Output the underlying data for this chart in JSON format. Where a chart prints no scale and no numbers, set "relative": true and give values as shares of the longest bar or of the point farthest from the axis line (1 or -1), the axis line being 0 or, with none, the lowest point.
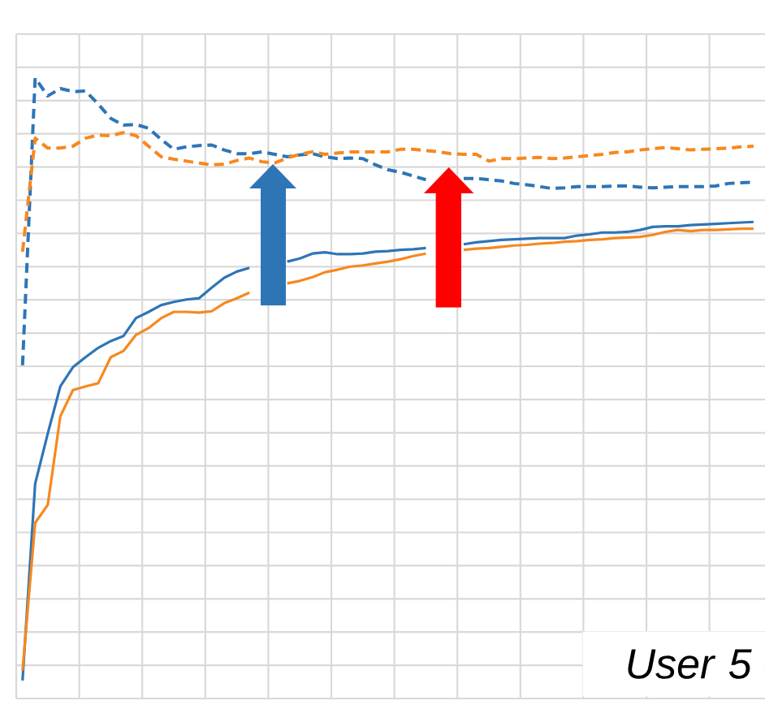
{
  "chart_data": {
    "type": "line",
    "relative": true,
    "grid": true,
    "categories": [
      null,
      null,
      null,
      null,
      null,
      null,
      null,
      null,
      null,
      null,
      null,
      null,
      null,
      null,
      null,
      null,
      null,
      null,
      null,
      null,
      null,
      null,
      null,
      null,
      null,
      null,
      null,
      null,
      null,
      null,
      null,
      null,
      null,
      null,
      null,
      null,
      null,
      null,
      null,
      null,
      null,
      null,
      null,
      null,
      null,
      null,
      null,
      null,
      null,
      null,
      null,
      null,
      null,
      null,
      null,
      null,
      null,
      null,
      null
    ],
    "series": [
      {
        "color": "#2e75b6",
        "line_style": "solid",
        "values": [
          0.029,
          0.346,
          0.427,
          0.503,
          0.534,
          0.55,
          0.565,
          0.576,
          0.584,
          0.613,
          0.623,
          0.634,
          0.639,
          0.643,
          0.645,
          0.662,
          0.678,
          0.688,
          0.694,
          null,
          null,
          0.704,
          0.709,
          0.717,
          0.719,
          0.716,
          0.716,
          0.717,
          0.72,
          0.721,
          0.723,
          0.724,
          0.726,
          null,
          null,
          0.732,
          0.735,
          0.737,
          0.739,
          0.74,
          0.741,
          0.742,
          0.742,
          0.742,
          0.746,
          0.748,
          0.751,
          0.751,
          0.752,
          0.755,
          0.76,
          0.761,
          0.761,
          0.763,
          0.764,
          0.765,
          0.766,
          0.767,
          0.768
        ]
      },
      {
        "color": "#f7881f",
        "line_style": "solid",
        "values": [
          0.045,
          0.283,
          0.312,
          0.455,
          0.497,
          0.503,
          0.508,
          0.55,
          0.56,
          0.586,
          0.597,
          0.613,
          0.623,
          0.623,
          0.622,
          0.624,
          0.637,
          0.645,
          0.654,
          null,
          null,
          0.669,
          0.673,
          0.679,
          0.687,
          0.691,
          0.696,
          0.698,
          0.701,
          0.704,
          0.708,
          0.713,
          0.717,
          null,
          null,
          0.723,
          0.725,
          0.726,
          0.728,
          0.73,
          0.731,
          0.733,
          0.734,
          0.736,
          0.737,
          0.739,
          0.74,
          0.742,
          0.743,
          0.744,
          0.747,
          0.752,
          0.755,
          0.753,
          0.755,
          0.755,
          0.756,
          0.757,
          0.757
        ]
      },
      {
        "color": "#2e75b6",
        "line_style": "dashed",
        "values": [
          0.537,
          1,
          0.971,
          0.983,
          0.978,
          0.979,
          0.958,
          0.935,
          0.924,
          0.925,
          0.919,
          0.901,
          0.885,
          0.889,
          0.891,
          0.892,
          0.884,
          0.878,
          0.878,
          0.881,
          0.877,
          0.873,
          0.876,
          0.878,
          0.873,
          0.87,
          0.871,
          0.87,
          0.86,
          0.852,
          0.848,
          0.842,
          0.836,
          null,
          null,
          0.838,
          0.838,
          0.836,
          0.834,
          0.83,
          0.828,
          0.825,
          0.822,
          0.823,
          0.825,
          0.825,
          0.825,
          0.826,
          0.826,
          0.824,
          0.823,
          0.824,
          0.825,
          0.825,
          0.825,
          0.826,
          0.83,
          0.831,
          0.832
        ]
      },
      {
        "color": "#f7881f",
        "line_style": "dashed",
        "values": [
          0.72,
          0.903,
          0.887,
          0.887,
          0.89,
          0.903,
          0.908,
          0.907,
          0.912,
          0.907,
          0.89,
          0.873,
          0.869,
          0.866,
          0.863,
          0.86,
          0.861,
          0.867,
          0.871,
          0.865,
          0.863,
          0.871,
          0.877,
          0.881,
          0.877,
          0.879,
          0.881,
          0.881,
          0.881,
          0.881,
          0.885,
          0.885,
          0.883,
          0.881,
          0.878,
          0.877,
          0.877,
          0.866,
          0.87,
          0.87,
          0.871,
          0.872,
          0.87,
          0.871,
          0.873,
          0.875,
          0.877,
          0.88,
          0.881,
          0.884,
          0.886,
          0.888,
          0.886,
          0.884,
          0.885,
          0.886,
          0.887,
          0.889,
          0.89
        ]
      }
    ],
    "annotations": [
      "User 5"
    ]
  }
}
